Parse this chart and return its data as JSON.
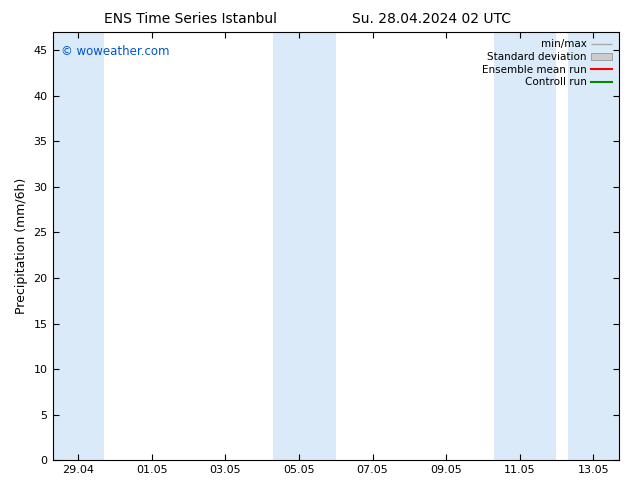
{
  "title_left": "ENS Time Series Istanbul",
  "title_right": "Su. 28.04.2024 02 UTC",
  "ylabel": "Precipitation (mm/6h)",
  "watermark": "© woweather.com",
  "watermark_color": "#0055cc",
  "background_color": "#ffffff",
  "plot_bg_color": "#ffffff",
  "shaded_band_color": "#daeaf8",
  "ylim": [
    0,
    47
  ],
  "yticks": [
    0,
    5,
    10,
    15,
    20,
    25,
    30,
    35,
    40,
    45
  ],
  "xtick_labels": [
    "29.04",
    "01.05",
    "03.05",
    "05.05",
    "07.05",
    "09.05",
    "11.05",
    "13.05"
  ],
  "xtick_positions": [
    0,
    2,
    4,
    6,
    8,
    10,
    12,
    14
  ],
  "x_min": -0.7,
  "x_max": 14.7,
  "shaded_regions": [
    [
      -0.7,
      0.7
    ],
    [
      5.3,
      7.0
    ],
    [
      11.3,
      13.0
    ],
    [
      13.3,
      14.7
    ]
  ],
  "legend_labels": [
    "min/max",
    "Standard deviation",
    "Ensemble mean run",
    "Controll run"
  ],
  "minmax_color": "#aaaaaa",
  "std_color": "#cccccc",
  "ens_color": "#ff0000",
  "ctrl_color": "#008800",
  "title_fontsize": 10,
  "label_fontsize": 9,
  "tick_fontsize": 8,
  "legend_fontsize": 7.5
}
